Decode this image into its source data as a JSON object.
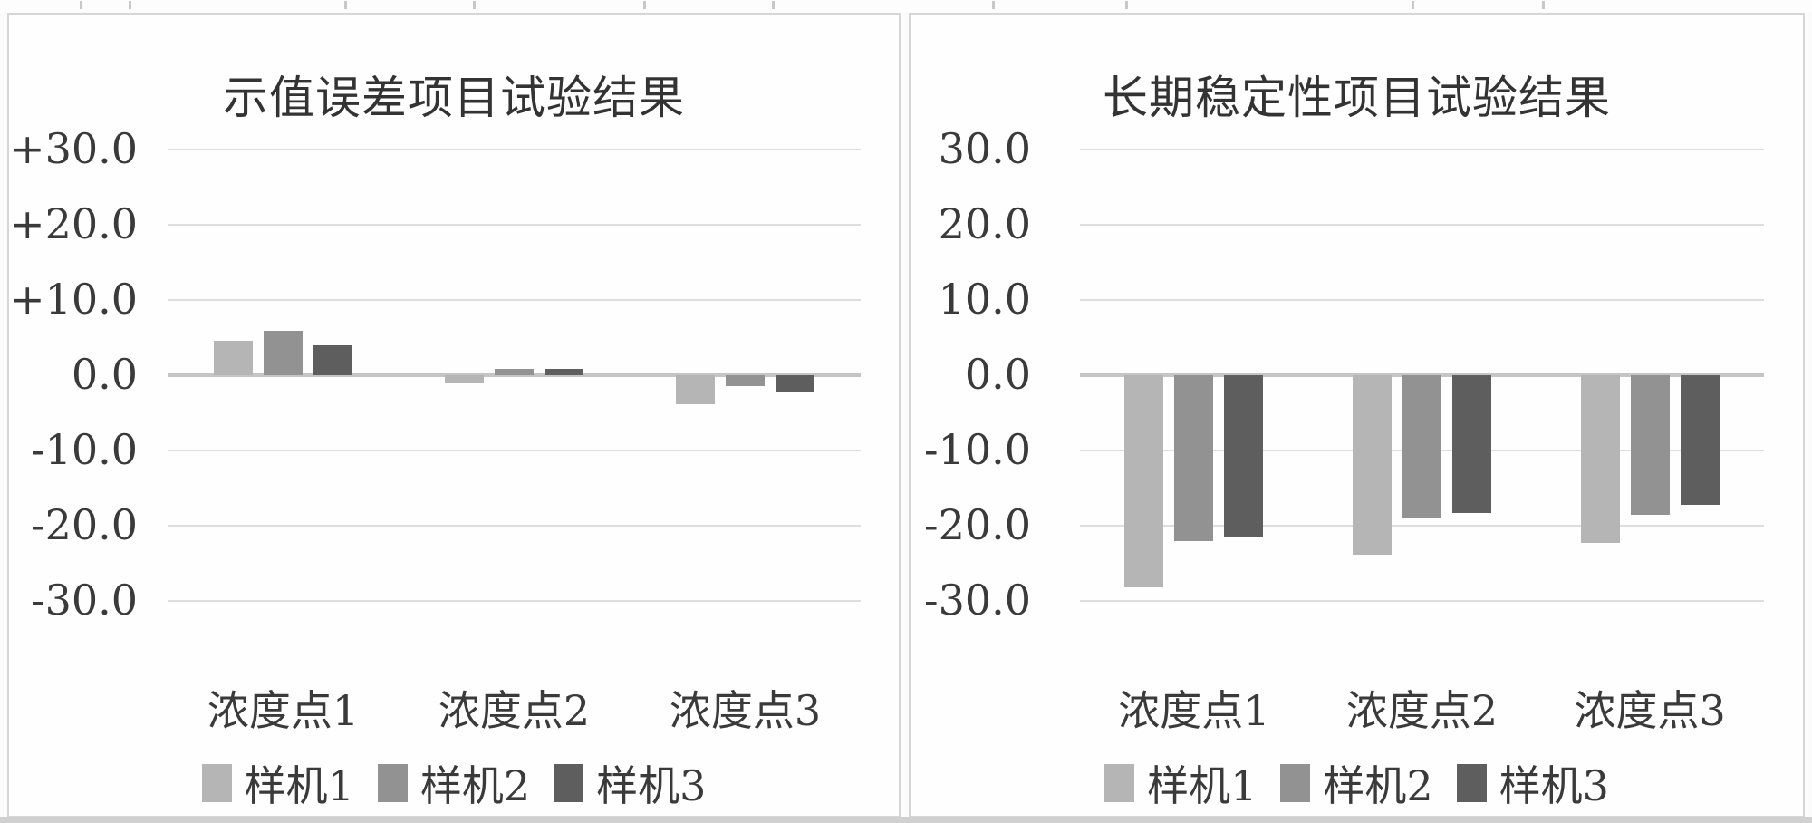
{
  "colors": {
    "series": [
      "#b5b5b5",
      "#929292",
      "#5e5e5e"
    ],
    "gridline": "#dedede",
    "axis_line": "#c5c5c5",
    "text": "#3a3a3a",
    "panel_border": "#d6d6d6",
    "panel_background": "#fefefe",
    "bottom_strip": "#d0d0d0"
  },
  "chart_data": [
    {
      "type": "bar",
      "title": "示值误差项目试验结果",
      "categories": [
        "浓度点1",
        "浓度点2",
        "浓度点3"
      ],
      "series": [
        {
          "name": "样机1",
          "color_index": 0,
          "values": [
            4.6,
            -1.1,
            -3.9
          ]
        },
        {
          "name": "样机2",
          "color_index": 1,
          "values": [
            5.9,
            0.8,
            -1.5
          ]
        },
        {
          "name": "样机3",
          "color_index": 2,
          "values": [
            4.0,
            0.8,
            -2.3
          ]
        }
      ],
      "ylim": [
        -30,
        30
      ],
      "ytick_values": [
        30,
        20,
        10,
        0,
        -10,
        -20,
        -30
      ],
      "ytick_labels": [
        "+30.0",
        "+20.0",
        "+10.0",
        "0.0",
        "-10.0",
        "-20.0",
        "-30.0"
      ],
      "grid": true,
      "legend_position": "bottom",
      "xlabel": "",
      "ylabel": ""
    },
    {
      "type": "bar",
      "title": "长期稳定性项目试验结果",
      "categories": [
        "浓度点1",
        "浓度点2",
        "浓度点3"
      ],
      "series": [
        {
          "name": "样机1",
          "color_index": 0,
          "values": [
            -28.2,
            -23.9,
            -22.3
          ]
        },
        {
          "name": "样机2",
          "color_index": 1,
          "values": [
            -22.0,
            -18.9,
            -18.5
          ]
        },
        {
          "name": "样机3",
          "color_index": 2,
          "values": [
            -21.4,
            -18.3,
            -17.2
          ]
        }
      ],
      "ylim": [
        -30,
        30
      ],
      "ytick_values": [
        30,
        20,
        10,
        0,
        -10,
        -20,
        -30
      ],
      "ytick_labels": [
        "30.0",
        "20.0",
        "10.0",
        "0.0",
        "-10.0",
        "-20.0",
        "-30.0"
      ],
      "grid": true,
      "legend_position": "bottom",
      "xlabel": "",
      "ylabel": ""
    }
  ]
}
